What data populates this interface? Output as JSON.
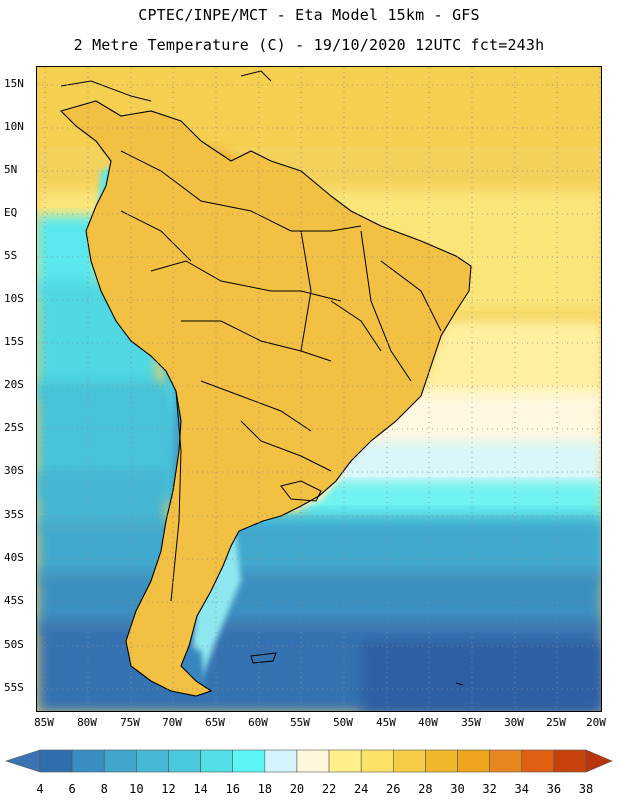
{
  "header": {
    "line1": "CPTEC/INPE/MCT -  Eta Model 15km - GFS",
    "line2": "2 Metre Temperature (C) - 19/10/2020 12UTC fct=243h"
  },
  "map": {
    "lat_labels": [
      "15N",
      "10N",
      "5N",
      "EQ",
      "5S",
      "10S",
      "15S",
      "20S",
      "25S",
      "30S",
      "35S",
      "40S",
      "45S",
      "50S",
      "55S"
    ],
    "lon_labels": [
      "85W",
      "80W",
      "75W",
      "70W",
      "65W",
      "60W",
      "55W",
      "50W",
      "45W",
      "40W",
      "35W",
      "30W",
      "25W",
      "20W"
    ]
  },
  "colorbar": {
    "labels": [
      "4",
      "6",
      "8",
      "10",
      "12",
      "14",
      "16",
      "18",
      "20",
      "22",
      "24",
      "26",
      "28",
      "30",
      "32",
      "34",
      "36",
      "38"
    ],
    "colors": [
      "#3a74b4",
      "#2f6fae",
      "#3b8ec4",
      "#3fa5cc",
      "#45b8d6",
      "#4cc8dc",
      "#53dfe6",
      "#5cf5f5",
      "#d2f5fb",
      "#fff6dc",
      "#fff08c",
      "#fbe266",
      "#f5cc46",
      "#f0b72d",
      "#eea41e",
      "#e8851f",
      "#e06012",
      "#c8420c",
      "#b8340a"
    ]
  }
}
